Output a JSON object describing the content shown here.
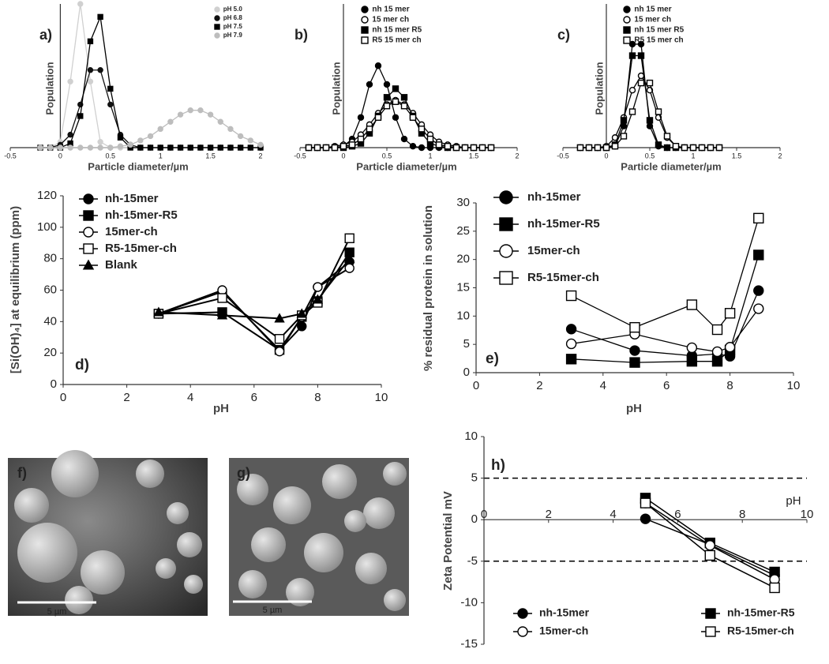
{
  "chart_data": [
    {
      "type": "line",
      "panel_label": "a)",
      "x_label": "Particle diameter/µm",
      "y_label": "Population",
      "x": [
        -0.2,
        -0.1,
        0,
        0.1,
        0.2,
        0.3,
        0.4,
        0.5,
        0.6,
        0.7,
        0.8,
        0.9,
        1.0,
        1.1,
        1.2,
        1.3,
        1.4,
        1.5,
        1.6,
        1.7,
        1.8,
        1.9,
        2.0
      ],
      "xlim": [
        -0.5,
        2
      ],
      "xticks": [
        -0.5,
        0,
        0.5,
        1,
        1.5,
        2
      ],
      "ylim": [
        0,
        100
      ],
      "legend": "upper right",
      "series": [
        {
          "name": "pH 5.0",
          "color": "#d0d0d0",
          "marker": "circle",
          "filled": true,
          "values": [
            0,
            0,
            4,
            46,
            100,
            46,
            4,
            0,
            0,
            0,
            0,
            0,
            0,
            0,
            0,
            0,
            0,
            0,
            0,
            0,
            0,
            0,
            0
          ]
        },
        {
          "name": "pH 6.8",
          "color": "#111111",
          "marker": "circle",
          "filled": true,
          "values": [
            0,
            0,
            2,
            9,
            30,
            54,
            54,
            30,
            9,
            2,
            0,
            0,
            0,
            0,
            0,
            0,
            0,
            0,
            0,
            0,
            0,
            0,
            0
          ]
        },
        {
          "name": "pH 7.5",
          "color": "#000000",
          "marker": "square",
          "filled": true,
          "values": [
            0,
            0,
            0,
            3,
            22,
            74,
            91,
            41,
            7,
            0,
            0,
            0,
            0,
            0,
            0,
            0,
            0,
            0,
            0,
            0,
            0,
            0,
            0
          ]
        },
        {
          "name": "pH 7.9",
          "color": "#bdbdbd",
          "marker": "circle",
          "filled": true,
          "values": [
            0,
            0,
            0,
            0,
            0,
            0,
            0,
            0,
            1,
            2,
            5,
            8,
            13,
            18,
            23,
            26,
            26,
            23,
            18,
            13,
            8,
            5,
            2
          ]
        }
      ]
    },
    {
      "type": "line",
      "panel_label": "b)",
      "x_label": "Particle diameter/µm",
      "y_label": "Population",
      "x": [
        -0.4,
        -0.3,
        -0.2,
        -0.1,
        0,
        0.1,
        0.2,
        0.3,
        0.4,
        0.5,
        0.6,
        0.7,
        0.8,
        0.9,
        1.0,
        1.1,
        1.2,
        1.3,
        1.4,
        1.5,
        1.6,
        1.7
      ],
      "xlim": [
        -0.5,
        2
      ],
      "xticks": [
        -0.5,
        0,
        0.5,
        1,
        1.5,
        2
      ],
      "ylim": [
        0,
        100
      ],
      "legend": "upper right",
      "series": [
        {
          "name": "nh 15 mer",
          "color": "#000000",
          "marker": "circle",
          "filled": true,
          "values": [
            0,
            0,
            0,
            0,
            1,
            6,
            21,
            44,
            57,
            44,
            21,
            6,
            1,
            0,
            0,
            0,
            0,
            0,
            0,
            0,
            0,
            0
          ]
        },
        {
          "name": "15 mer ch",
          "color": "#000000",
          "marker": "circle",
          "filled": false,
          "values": [
            0,
            0,
            0,
            1,
            2,
            4,
            9,
            16,
            24,
            30,
            33,
            30,
            24,
            16,
            9,
            4,
            2,
            1,
            0,
            0,
            0,
            0
          ]
        },
        {
          "name": "nh 15 mer R5",
          "color": "#000000",
          "marker": "square",
          "filled": true,
          "values": [
            0,
            0,
            0,
            0,
            0,
            1,
            3,
            10,
            22,
            35,
            41,
            35,
            22,
            10,
            3,
            1,
            0,
            0,
            0,
            0,
            0,
            0
          ]
        },
        {
          "name": "R5 15 mer ch",
          "color": "#000000",
          "marker": "square",
          "filled": false,
          "values": [
            0,
            0,
            0,
            0,
            1,
            2,
            6,
            13,
            21,
            29,
            32,
            29,
            21,
            13,
            6,
            2,
            1,
            0,
            0,
            0,
            0,
            0
          ]
        }
      ]
    },
    {
      "type": "line",
      "panel_label": "c)",
      "x_label": "Particle diameter/µm",
      "y_label": "Population",
      "x": [
        -0.3,
        -0.2,
        -0.1,
        0,
        0.1,
        0.2,
        0.3,
        0.4,
        0.5,
        0.6,
        0.7,
        0.8,
        0.9,
        1.0,
        1.1,
        1.2,
        1.3
      ],
      "xlim": [
        -0.5,
        2
      ],
      "xticks": [
        -0.5,
        0,
        0.5,
        1,
        1.5,
        2
      ],
      "ylim": [
        0,
        100
      ],
      "legend": "upper right",
      "series": [
        {
          "name": "nh 15 mer",
          "color": "#000000",
          "marker": "circle",
          "filled": true,
          "values": [
            0,
            0,
            0,
            0,
            1,
            15,
            72,
            72,
            15,
            1,
            0,
            0,
            0,
            0,
            0,
            0,
            0
          ]
        },
        {
          "name": "15 mer ch",
          "color": "#000000",
          "marker": "circle",
          "filled": false,
          "values": [
            0,
            0,
            0,
            1,
            7,
            21,
            40,
            50,
            40,
            21,
            7,
            1,
            0,
            0,
            0,
            0,
            0
          ]
        },
        {
          "name": "nh 15 mer R5",
          "color": "#000000",
          "marker": "square",
          "filled": true,
          "values": [
            0,
            0,
            0,
            0,
            2,
            19,
            64,
            64,
            19,
            2,
            0,
            0,
            0,
            0,
            0,
            0,
            0
          ]
        },
        {
          "name": "R5 15 mer ch",
          "color": "#000000",
          "marker": "square",
          "filled": false,
          "values": [
            0,
            0,
            0,
            0,
            1,
            8,
            25,
            45,
            45,
            25,
            8,
            1,
            0,
            0,
            0,
            0,
            0
          ]
        }
      ]
    },
    {
      "type": "line",
      "panel_label": "d)",
      "x_label": "pH",
      "y_label": "[Si(OH)₄] at equilibrium (ppm)",
      "x": [
        3,
        5,
        6.8,
        7.5,
        8,
        9
      ],
      "xlim": [
        0,
        10
      ],
      "xticks": [
        0,
        2,
        4,
        6,
        8,
        10
      ],
      "ylim": [
        0,
        120
      ],
      "yticks": [
        0,
        20,
        40,
        60,
        80,
        100,
        120
      ],
      "legend": "upper left",
      "series": [
        {
          "name": "nh-15mer",
          "color": "#000000",
          "marker": "circle",
          "filled": true,
          "values": [
            45,
            59,
            22,
            37,
            62,
            78
          ]
        },
        {
          "name": "nh-15mer-R5",
          "color": "#000000",
          "marker": "square",
          "filled": true,
          "values": [
            45,
            46,
            22,
            43,
            53,
            84
          ]
        },
        {
          "name": "15mer-ch",
          "color": "#000000",
          "marker": "circle",
          "filled": false,
          "values": [
            45,
            60,
            21,
            43,
            62,
            74
          ]
        },
        {
          "name": "R5-15mer-ch",
          "color": "#000000",
          "marker": "square",
          "filled": false,
          "values": [
            45,
            55,
            29,
            44,
            52,
            93
          ]
        },
        {
          "name": "Blank",
          "color": "#000000",
          "marker": "triangle",
          "filled": true,
          "values": [
            46,
            44,
            42,
            45,
            54,
            80
          ]
        }
      ]
    },
    {
      "type": "line",
      "panel_label": "e)",
      "x_label": "pH",
      "y_label": "% residual protein in solution",
      "x": [
        3,
        5,
        6.8,
        7.6,
        8,
        8.9
      ],
      "xlim": [
        0,
        10
      ],
      "xticks": [
        0,
        2,
        4,
        6,
        8,
        10
      ],
      "ylim": [
        0,
        30
      ],
      "yticks": [
        0,
        5,
        10,
        15,
        20,
        25,
        30
      ],
      "legend": "upper left",
      "series": [
        {
          "name": "nh-15mer",
          "color": "#000000",
          "marker": "circle",
          "filled": true,
          "values": [
            7.7,
            3.9,
            3.0,
            3.3,
            2.9,
            14.5
          ]
        },
        {
          "name": "nh-15mer-R5",
          "color": "#000000",
          "marker": "square",
          "filled": true,
          "values": [
            2.4,
            1.8,
            2.0,
            2.0,
            4.0,
            20.8
          ]
        },
        {
          "name": "15mer-ch",
          "color": "#000000",
          "marker": "circle",
          "filled": false,
          "values": [
            5.1,
            6.8,
            4.4,
            3.7,
            4.5,
            11.3
          ]
        },
        {
          "name": "R5-15mer-ch",
          "color": "#000000",
          "marker": "square",
          "filled": false,
          "values": [
            13.6,
            8.0,
            12.0,
            7.6,
            10.5,
            27.3
          ]
        }
      ]
    },
    {
      "type": "line",
      "panel_label": "h)",
      "y_label": "Zeta Potential mV",
      "annotation": "pH",
      "x": [
        5,
        7,
        9
      ],
      "xlim": [
        0,
        10
      ],
      "xticks": [
        0,
        2,
        4,
        6,
        8,
        10
      ],
      "ylim": [
        -15,
        10
      ],
      "yticks": [
        -15,
        -10,
        -5,
        0,
        5,
        10
      ],
      "reference_lines": [
        5,
        -5
      ],
      "legend": "lower center",
      "series": [
        {
          "name": "nh-15mer",
          "color": "#000000",
          "marker": "circle",
          "filled": true,
          "values": [
            0.1,
            -3.0,
            -6.7
          ]
        },
        {
          "name": "nh-15mer-R5",
          "color": "#000000",
          "marker": "square",
          "filled": true,
          "values": [
            2.6,
            -2.8,
            -6.3
          ]
        },
        {
          "name": "15mer-ch",
          "color": "#000000",
          "marker": "circle",
          "filled": false,
          "values": [
            2.0,
            -3.1,
            -7.2
          ]
        },
        {
          "name": "R5-15mer-ch",
          "color": "#000000",
          "marker": "square",
          "filled": false,
          "values": [
            2.0,
            -4.3,
            -8.2
          ]
        }
      ]
    }
  ],
  "images": [
    {
      "panel_label": "f)",
      "scale_bar": "5 µm"
    },
    {
      "panel_label": "g)",
      "scale_bar": "5 µm"
    }
  ]
}
